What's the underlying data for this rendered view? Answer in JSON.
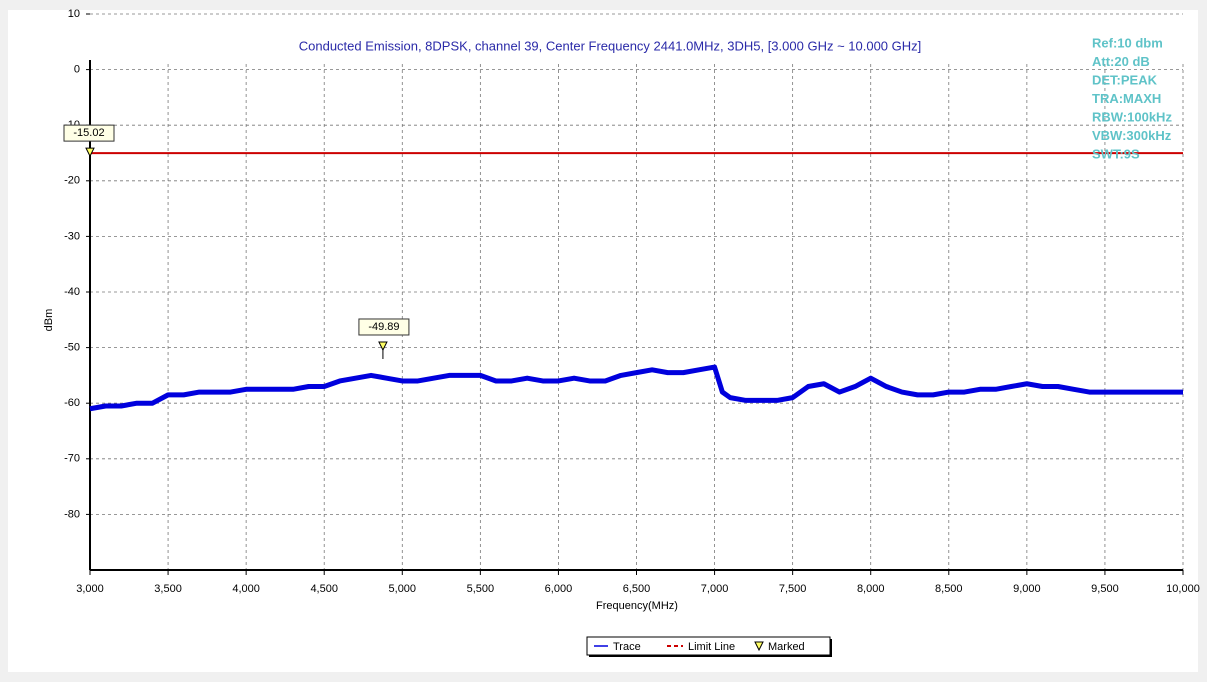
{
  "chart_data": {
    "type": "line",
    "title": "Conducted Emission, 8DPSK, channel 39, Center Frequency 2441.0MHz, 3DH5, [3.000 GHz ~ 10.000 GHz]",
    "x_label": "Frequency(MHz)",
    "y_label": "dBm",
    "annotations": [
      "Ref:10 dbm",
      "Att:20 dB",
      "DET:PEAK",
      "TRA:MAXH",
      "RBW:100kHz",
      "VBW:300kHz",
      "SWT:9S"
    ],
    "x": [
      3000,
      3100,
      3200,
      3300,
      3400,
      3500,
      3600,
      3700,
      3800,
      3900,
      4000,
      4100,
      4200,
      4300,
      4400,
      4500,
      4600,
      4700,
      4800,
      4900,
      5000,
      5100,
      5200,
      5300,
      5400,
      5500,
      5600,
      5700,
      5800,
      5900,
      6000,
      6100,
      6200,
      6300,
      6400,
      6500,
      6600,
      6700,
      6800,
      6900,
      7000,
      7050,
      7100,
      7200,
      7300,
      7400,
      7500,
      7600,
      7700,
      7800,
      7900,
      8000,
      8100,
      8200,
      8300,
      8400,
      8500,
      8600,
      8700,
      8800,
      8900,
      9000,
      9100,
      9200,
      9300,
      9400,
      9500,
      9600,
      9700,
      9800,
      9900,
      10000
    ],
    "series": [
      {
        "name": "Trace",
        "color": "#0000dd",
        "values": [
          -61,
          -60.5,
          -60.5,
          -60,
          -60,
          -58.5,
          -58.5,
          -58,
          -58,
          -58,
          -57.5,
          -57.5,
          -57.5,
          -57.5,
          -57,
          -57,
          -56,
          -55.5,
          -55,
          -55.5,
          -56,
          -56,
          -55.5,
          -55,
          -55,
          -55,
          -56,
          -56,
          -55.5,
          -56,
          -56,
          -55.5,
          -56,
          -56,
          -55,
          -54.5,
          -54,
          -54.5,
          -54.5,
          -54,
          -53.5,
          -58,
          -59,
          -59.5,
          -59.5,
          -59.5,
          -59,
          -57,
          -56.5,
          -58,
          -57,
          -55.5,
          -57,
          -58,
          -58.5,
          -58.5,
          -58,
          -58,
          -57.5,
          -57.5,
          -57,
          -56.5,
          -57,
          -57,
          -57.5,
          -58,
          -58,
          -58,
          -58,
          -58,
          -58,
          -58
        ]
      }
    ],
    "limit_line": {
      "name": "Limit Line",
      "value": -15.02,
      "color": "#cc0000"
    },
    "markers": [
      {
        "x": 3000,
        "value": -15.02
      },
      {
        "x": 4876,
        "value": -49.89
      }
    ],
    "marker_legend": "Marked",
    "xlim": [
      3000,
      10000
    ],
    "xticks": [
      {
        "value": 3000,
        "label": "3,000"
      },
      {
        "value": 3500,
        "label": "3,500"
      },
      {
        "value": 4000,
        "label": "4,000"
      },
      {
        "value": 4500,
        "label": "4,500"
      },
      {
        "value": 5000,
        "label": "5,000"
      },
      {
        "value": 5500,
        "label": "5,500"
      },
      {
        "value": 6000,
        "label": "6,000"
      },
      {
        "value": 6500,
        "label": "6,500"
      },
      {
        "value": 7000,
        "label": "7,000"
      },
      {
        "value": 7500,
        "label": "7,500"
      },
      {
        "value": 8000,
        "label": "8,000"
      },
      {
        "value": 8500,
        "label": "8,500"
      },
      {
        "value": 9000,
        "label": "9,000"
      },
      {
        "value": 9500,
        "label": "9,500"
      },
      {
        "value": 10000,
        "label": "10,000"
      }
    ],
    "ylim": [
      -90,
      10
    ],
    "yticks": [
      10,
      0,
      -10,
      -20,
      -30,
      -40,
      -50,
      -60,
      -70,
      -80
    ],
    "grid": true
  }
}
